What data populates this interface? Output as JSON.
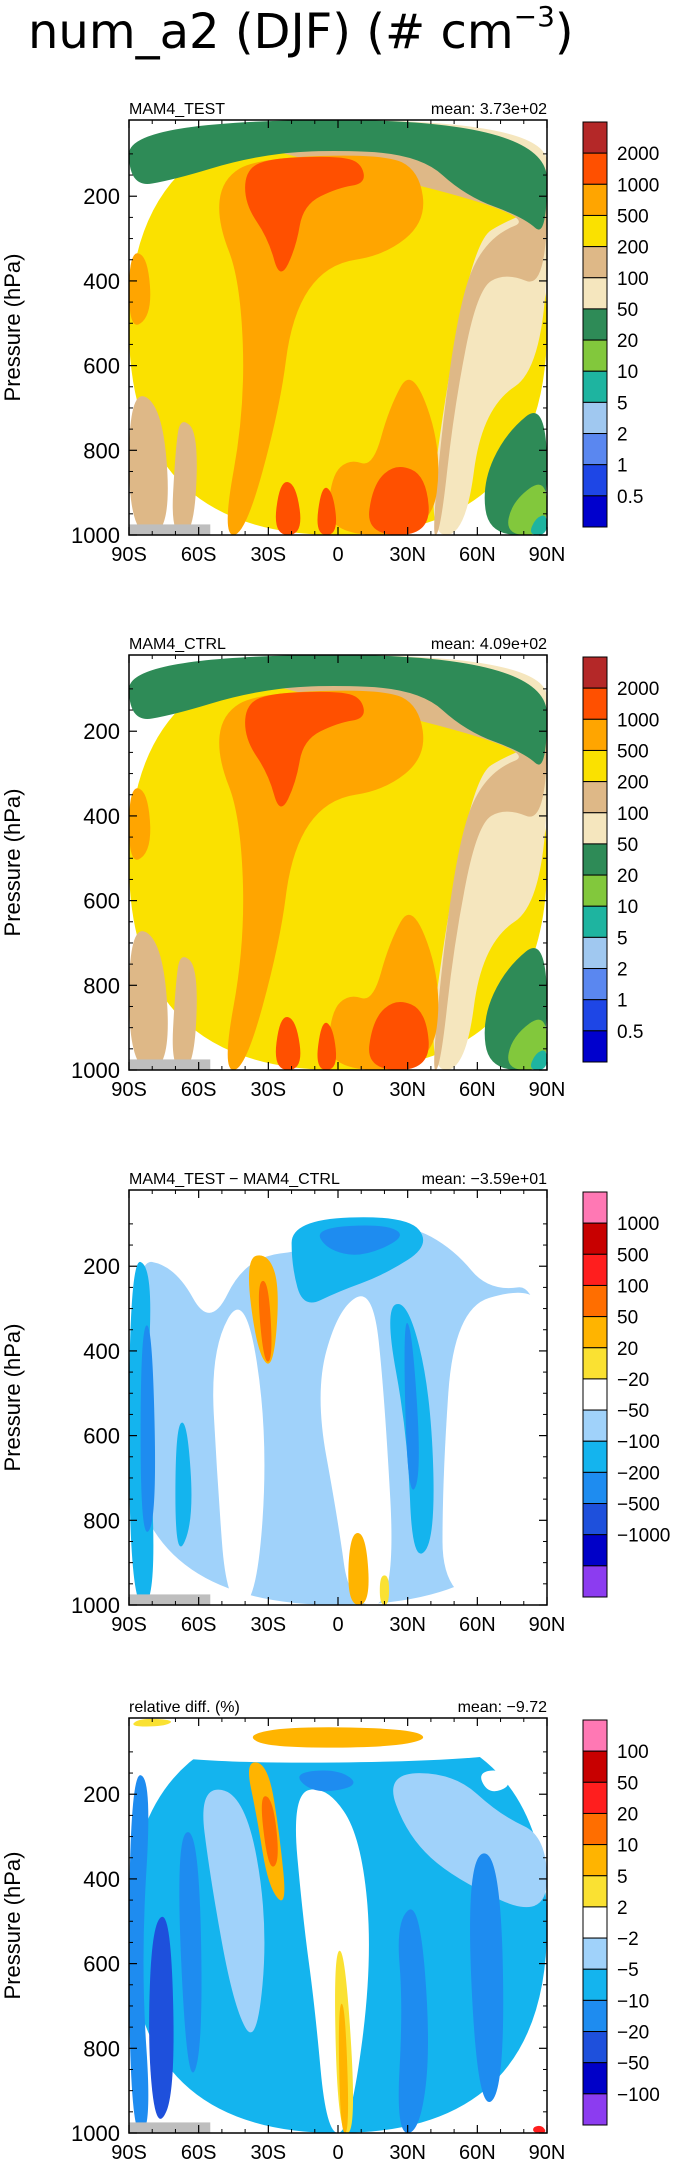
{
  "title": {
    "main": "num_a2 (DJF) (# cm",
    "sup": "−3",
    "close": ")"
  },
  "colors": {
    "abs_palette": [
      "#0000cd",
      "#1e46e6",
      "#5a87f0",
      "#a0c8f0",
      "#1eb4a0",
      "#82c83c",
      "#2e8b57",
      "#f5e6be",
      "#deb887",
      "#fae100",
      "#ffa500",
      "#ff5000",
      "#b42828"
    ],
    "diff_palette": [
      "#8c3cf0",
      "#0000c8",
      "#1e50dc",
      "#1e8cf0",
      "#14b4ee",
      "#a0d2fa",
      "#ffffff",
      "#fae132",
      "#ffb400",
      "#ff6e00",
      "#ff1e1e",
      "#c80000",
      "#ff78b4"
    ],
    "ground": "#bebebe"
  },
  "chart_data": [
    {
      "type": "heatmap",
      "panel": "MAM4_TEST",
      "left_title": "MAM4_TEST",
      "right_title": "mean: 3.73e+02",
      "ylabel": "Pressure (hPa)",
      "xticks": [
        "90S",
        "60S",
        "30S",
        "0",
        "30N",
        "60N",
        "90N"
      ],
      "xtick_values": [
        -90,
        -60,
        -30,
        0,
        30,
        60,
        90
      ],
      "yticks": [
        "200",
        "400",
        "600",
        "800",
        "1000"
      ],
      "ytick_values": [
        200,
        400,
        600,
        800,
        1000
      ],
      "xlim": [
        -90,
        90
      ],
      "ylim": [
        1000,
        20
      ],
      "levels": [
        "0.5",
        "1",
        "2",
        "5",
        "10",
        "20",
        "50",
        "100",
        "200",
        "500",
        "1000",
        "2000"
      ],
      "level_values": [
        0.5,
        1,
        2,
        5,
        10,
        20,
        50,
        100,
        200,
        500,
        1000,
        2000
      ],
      "palette": "abs"
    },
    {
      "type": "heatmap",
      "panel": "MAM4_CTRL",
      "left_title": "MAM4_CTRL",
      "right_title": "mean: 4.09e+02",
      "ylabel": "Pressure (hPa)",
      "xticks": [
        "90S",
        "60S",
        "30S",
        "0",
        "30N",
        "60N",
        "90N"
      ],
      "xtick_values": [
        -90,
        -60,
        -30,
        0,
        30,
        60,
        90
      ],
      "yticks": [
        "200",
        "400",
        "600",
        "800",
        "1000"
      ],
      "ytick_values": [
        200,
        400,
        600,
        800,
        1000
      ],
      "xlim": [
        -90,
        90
      ],
      "ylim": [
        1000,
        20
      ],
      "levels": [
        "0.5",
        "1",
        "2",
        "5",
        "10",
        "20",
        "50",
        "100",
        "200",
        "500",
        "1000",
        "2000"
      ],
      "level_values": [
        0.5,
        1,
        2,
        5,
        10,
        20,
        50,
        100,
        200,
        500,
        1000,
        2000
      ],
      "palette": "abs"
    },
    {
      "type": "heatmap",
      "panel": "difference",
      "left_title": "MAM4_TEST − MAM4_CTRL",
      "right_title": "mean: −3.59e+01",
      "ylabel": "Pressure (hPa)",
      "xticks": [
        "90S",
        "60S",
        "30S",
        "0",
        "30N",
        "60N",
        "90N"
      ],
      "xtick_values": [
        -90,
        -60,
        -30,
        0,
        30,
        60,
        90
      ],
      "yticks": [
        "200",
        "400",
        "600",
        "800",
        "1000"
      ],
      "ytick_values": [
        200,
        400,
        600,
        800,
        1000
      ],
      "xlim": [
        -90,
        90
      ],
      "ylim": [
        1000,
        20
      ],
      "levels": [
        "−1000",
        "−500",
        "−200",
        "−100",
        "−50",
        "−20",
        "20",
        "50",
        "100",
        "500",
        "1000"
      ],
      "level_values": [
        -1000,
        -500,
        -200,
        -100,
        -50,
        -20,
        20,
        50,
        100,
        500,
        1000
      ],
      "palette": "diff"
    },
    {
      "type": "heatmap",
      "panel": "relative_difference",
      "left_title": "relative diff. (%)",
      "right_title": "mean: −9.72",
      "ylabel": "Pressure (hPa)",
      "xticks": [
        "90S",
        "60S",
        "30S",
        "0",
        "30N",
        "60N",
        "90N"
      ],
      "xtick_values": [
        -90,
        -60,
        -30,
        0,
        30,
        60,
        90
      ],
      "yticks": [
        "200",
        "400",
        "600",
        "800",
        "1000"
      ],
      "ytick_values": [
        200,
        400,
        600,
        800,
        1000
      ],
      "xlim": [
        -90,
        90
      ],
      "ylim": [
        1000,
        20
      ],
      "levels": [
        "−100",
        "−50",
        "−20",
        "−10",
        "−5",
        "−2",
        "2",
        "5",
        "10",
        "20",
        "50",
        "100"
      ],
      "level_values": [
        -100,
        -50,
        -20,
        -10,
        -5,
        -2,
        2,
        5,
        10,
        20,
        50,
        100
      ],
      "palette": "diff"
    }
  ]
}
